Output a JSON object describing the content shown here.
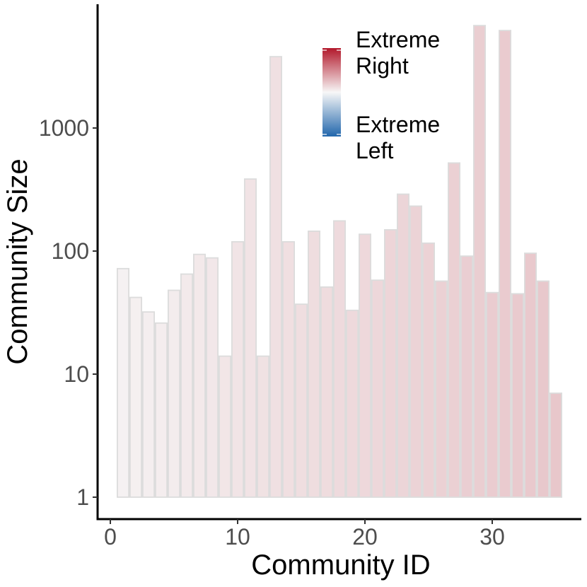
{
  "chart_data": {
    "type": "bar",
    "title": "",
    "xlabel": "Community ID",
    "ylabel": "Community Size",
    "y_scale": "log10",
    "ylim": [
      0.6,
      9000
    ],
    "xlim": [
      -1,
      37
    ],
    "x_ticks": [
      0,
      10,
      20,
      30
    ],
    "x_tick_labels": [
      "0",
      "10",
      "20",
      "30"
    ],
    "y_ticks": [
      1,
      10,
      100,
      1000
    ],
    "y_tick_labels": [
      "1",
      "10",
      "100",
      "1000"
    ],
    "grid": false,
    "baseline": 1,
    "categories": [
      1,
      2,
      3,
      4,
      5,
      6,
      7,
      8,
      9,
      10,
      11,
      12,
      13,
      14,
      15,
      16,
      17,
      18,
      19,
      20,
      21,
      22,
      23,
      24,
      25,
      26,
      27,
      28,
      29,
      30,
      31,
      32,
      33,
      34,
      35
    ],
    "values": [
      72,
      42,
      32,
      26,
      48,
      65,
      94,
      88,
      14,
      119,
      385,
      14,
      3800,
      119,
      37,
      145,
      51,
      176,
      33,
      137,
      58,
      149,
      290,
      232,
      116,
      57,
      520,
      91,
      6800,
      46,
      6200,
      45,
      96,
      57,
      7
    ],
    "fill_scale_position": [
      0.08,
      0.1,
      0.12,
      0.14,
      0.16,
      0.18,
      0.2,
      0.22,
      0.24,
      0.26,
      0.28,
      0.3,
      0.32,
      0.33,
      0.35,
      0.37,
      0.38,
      0.4,
      0.42,
      0.43,
      0.45,
      0.47,
      0.48,
      0.5,
      0.52,
      0.53,
      0.55,
      0.57,
      0.58,
      0.6,
      0.61,
      0.63,
      0.64,
      0.66,
      0.67
    ],
    "legend": {
      "position": "top-center",
      "high_label": "Extreme Right",
      "high_lines": [
        "Extreme",
        "Right"
      ],
      "low_label": "Extreme Left",
      "low_lines": [
        "Extreme",
        "Left"
      ],
      "high_color": "#b2182b",
      "mid_color": "#f7f7f7",
      "low_color": "#2166ac"
    },
    "bar_outline_color": "#dcdcdc"
  }
}
